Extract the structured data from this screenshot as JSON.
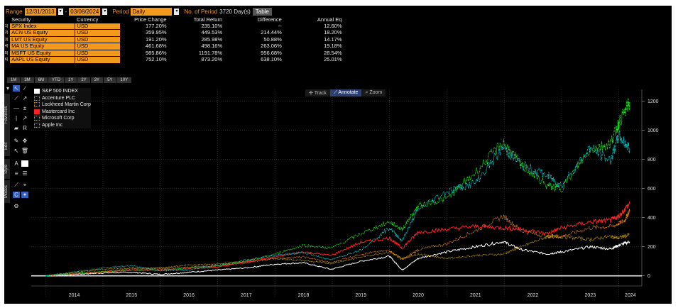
{
  "topbar": {
    "range_label": "Range",
    "start_date": "12/31/2013",
    "end_date": "03/08/2024",
    "period_label": "Period",
    "period_value": "Daily",
    "no_of_period_label": "No. of Period",
    "no_of_period_value": "3720 Day(s)",
    "table_tab": "Table"
  },
  "table": {
    "headers": [
      "Security",
      "Currency",
      "Price Change",
      "Total Return",
      "Difference",
      "Annual Eq"
    ],
    "rows": [
      {
        "num": "1)",
        "security": "SPX Index",
        "currency": "USD",
        "price_change": "177.20%",
        "total_return": "235.10%",
        "difference": "--",
        "annual_eq": "12.60%"
      },
      {
        "num": "2)",
        "security": "ACN US Equity",
        "currency": "USD",
        "price_change": "359.95%",
        "total_return": "449.53%",
        "difference": "214.44%",
        "annual_eq": "18.20%"
      },
      {
        "num": "3)",
        "security": "LMT US Equity",
        "currency": "USD",
        "price_change": "191.20%",
        "total_return": "285.98%",
        "difference": "50.88%",
        "annual_eq": "14.17%"
      },
      {
        "num": "4)",
        "security": "MA US Equity",
        "currency": "USD",
        "price_change": "461.68%",
        "total_return": "498.16%",
        "difference": "263.06%",
        "annual_eq": "19.18%"
      },
      {
        "num": "5)",
        "security": "MSFT US Equity",
        "currency": "USD",
        "price_change": "985.86%",
        "total_return": "1191.78%",
        "difference": "956.68%",
        "annual_eq": "28.54%"
      },
      {
        "num": "6)",
        "security": "AAPL US Equity",
        "currency": "USD",
        "price_change": "752.10%",
        "total_return": "873.20%",
        "difference": "638.10%",
        "annual_eq": "25.01%"
      }
    ]
  },
  "periods": [
    "1M",
    "3M",
    "6M",
    "YTD",
    "1Y",
    "2Y",
    "3Y",
    "5Y",
    "10Y"
  ],
  "sidebar": {
    "favorites": "Favorites",
    "edit": "Edit",
    "style": "Style",
    "modes": "Modes"
  },
  "chart_modes": [
    "Track",
    "Annotate",
    "Zoom"
  ],
  "colors": {
    "orange": "#f39a1d",
    "background": "#000000"
  },
  "chart_data": {
    "type": "line",
    "legend_position": "top-left",
    "grid": true,
    "x_ticks": [
      "2014",
      "2015",
      "2016",
      "2017",
      "2018",
      "2019",
      "2020",
      "2021",
      "2022",
      "2023",
      "2024"
    ],
    "y_ticks": [
      0,
      200,
      400,
      600,
      800,
      1000,
      1200
    ],
    "ylim": [
      -50,
      1280
    ],
    "xlim": [
      2013.75,
      2024.4
    ],
    "series": [
      {
        "name": "S&P 500 INDEX",
        "color": "#ffffff",
        "dotted": false,
        "points": [
          [
            2014.0,
            0
          ],
          [
            2014.5,
            10
          ],
          [
            2015.0,
            20
          ],
          [
            2015.5,
            25
          ],
          [
            2016.0,
            10
          ],
          [
            2016.5,
            25
          ],
          [
            2017.0,
            40
          ],
          [
            2017.5,
            55
          ],
          [
            2018.0,
            80
          ],
          [
            2018.5,
            90
          ],
          [
            2018.98,
            45
          ],
          [
            2019.5,
            100
          ],
          [
            2020.0,
            135
          ],
          [
            2020.22,
            40
          ],
          [
            2020.5,
            120
          ],
          [
            2021.0,
            165
          ],
          [
            2021.5,
            200
          ],
          [
            2021.98,
            235
          ],
          [
            2022.3,
            180
          ],
          [
            2022.75,
            150
          ],
          [
            2023.0,
            165
          ],
          [
            2023.5,
            200
          ],
          [
            2023.85,
            185
          ],
          [
            2024.0,
            210
          ],
          [
            2024.19,
            235
          ]
        ]
      },
      {
        "name": "Accenture PLC",
        "color": "#e08020",
        "dotted": true,
        "points": [
          [
            2014.0,
            0
          ],
          [
            2014.5,
            15
          ],
          [
            2015.0,
            30
          ],
          [
            2015.5,
            50
          ],
          [
            2016.0,
            50
          ],
          [
            2016.5,
            60
          ],
          [
            2017.0,
            70
          ],
          [
            2017.5,
            90
          ],
          [
            2018.0,
            120
          ],
          [
            2018.5,
            130
          ],
          [
            2018.98,
            90
          ],
          [
            2019.5,
            150
          ],
          [
            2020.0,
            175
          ],
          [
            2020.22,
            110
          ],
          [
            2020.5,
            180
          ],
          [
            2021.0,
            220
          ],
          [
            2021.5,
            310
          ],
          [
            2021.98,
            410
          ],
          [
            2022.3,
            310
          ],
          [
            2022.75,
            270
          ],
          [
            2023.0,
            270
          ],
          [
            2023.5,
            330
          ],
          [
            2023.9,
            340
          ],
          [
            2024.1,
            380
          ],
          [
            2024.19,
            450
          ]
        ]
      },
      {
        "name": "Lockheed Martin Corp",
        "color": "#c8a000",
        "dotted": true,
        "points": [
          [
            2014.0,
            0
          ],
          [
            2014.5,
            25
          ],
          [
            2015.0,
            45
          ],
          [
            2015.5,
            55
          ],
          [
            2016.0,
            55
          ],
          [
            2016.5,
            75
          ],
          [
            2017.0,
            80
          ],
          [
            2017.5,
            100
          ],
          [
            2018.0,
            120
          ],
          [
            2018.5,
            105
          ],
          [
            2018.98,
            85
          ],
          [
            2019.5,
            130
          ],
          [
            2020.0,
            165
          ],
          [
            2020.22,
            120
          ],
          [
            2020.5,
            150
          ],
          [
            2021.0,
            120
          ],
          [
            2021.5,
            140
          ],
          [
            2021.98,
            150
          ],
          [
            2022.3,
            200
          ],
          [
            2022.75,
            270
          ],
          [
            2023.0,
            270
          ],
          [
            2023.5,
            250
          ],
          [
            2023.85,
            270
          ],
          [
            2024.0,
            260
          ],
          [
            2024.19,
            285
          ]
        ]
      },
      {
        "name": "Mastercard Inc",
        "color": "#ff2020",
        "dotted": false,
        "points": [
          [
            2014.0,
            0
          ],
          [
            2014.5,
            15
          ],
          [
            2015.0,
            25
          ],
          [
            2015.5,
            40
          ],
          [
            2016.0,
            40
          ],
          [
            2016.5,
            50
          ],
          [
            2017.0,
            60
          ],
          [
            2017.5,
            95
          ],
          [
            2018.0,
            130
          ],
          [
            2018.5,
            165
          ],
          [
            2018.98,
            140
          ],
          [
            2019.5,
            230
          ],
          [
            2020.0,
            260
          ],
          [
            2020.22,
            190
          ],
          [
            2020.5,
            300
          ],
          [
            2021.0,
            320
          ],
          [
            2021.5,
            340
          ],
          [
            2021.98,
            330
          ],
          [
            2022.3,
            320
          ],
          [
            2022.75,
            290
          ],
          [
            2023.0,
            330
          ],
          [
            2023.5,
            370
          ],
          [
            2023.85,
            380
          ],
          [
            2024.0,
            410
          ],
          [
            2024.19,
            498
          ]
        ]
      },
      {
        "name": "Microsoft Corp",
        "color": "#22dd22",
        "dotted": true,
        "points": [
          [
            2014.0,
            0
          ],
          [
            2014.5,
            15
          ],
          [
            2015.0,
            30
          ],
          [
            2015.5,
            40
          ],
          [
            2016.0,
            40
          ],
          [
            2016.5,
            55
          ],
          [
            2017.0,
            70
          ],
          [
            2017.5,
            100
          ],
          [
            2018.0,
            150
          ],
          [
            2018.5,
            210
          ],
          [
            2018.98,
            190
          ],
          [
            2019.5,
            290
          ],
          [
            2020.0,
            370
          ],
          [
            2020.22,
            320
          ],
          [
            2020.5,
            480
          ],
          [
            2021.0,
            530
          ],
          [
            2021.5,
            710
          ],
          [
            2021.98,
            920
          ],
          [
            2022.3,
            760
          ],
          [
            2022.75,
            620
          ],
          [
            2023.0,
            600
          ],
          [
            2023.5,
            870
          ],
          [
            2023.85,
            910
          ],
          [
            2024.0,
            1050
          ],
          [
            2024.19,
            1191
          ]
        ]
      },
      {
        "name": "Apple Inc",
        "color": "#00c8c8",
        "dotted": true,
        "points": [
          [
            2014.0,
            0
          ],
          [
            2014.5,
            25
          ],
          [
            2015.0,
            55
          ],
          [
            2015.5,
            70
          ],
          [
            2016.0,
            35
          ],
          [
            2016.5,
            40
          ],
          [
            2017.0,
            70
          ],
          [
            2017.5,
            110
          ],
          [
            2018.0,
            140
          ],
          [
            2018.5,
            160
          ],
          [
            2018.98,
            110
          ],
          [
            2019.5,
            180
          ],
          [
            2020.0,
            330
          ],
          [
            2020.22,
            240
          ],
          [
            2020.5,
            460
          ],
          [
            2021.0,
            580
          ],
          [
            2021.5,
            640
          ],
          [
            2021.98,
            880
          ],
          [
            2022.3,
            760
          ],
          [
            2022.75,
            690
          ],
          [
            2023.0,
            620
          ],
          [
            2023.5,
            880
          ],
          [
            2023.85,
            790
          ],
          [
            2024.0,
            960
          ],
          [
            2024.19,
            873
          ]
        ]
      }
    ]
  }
}
